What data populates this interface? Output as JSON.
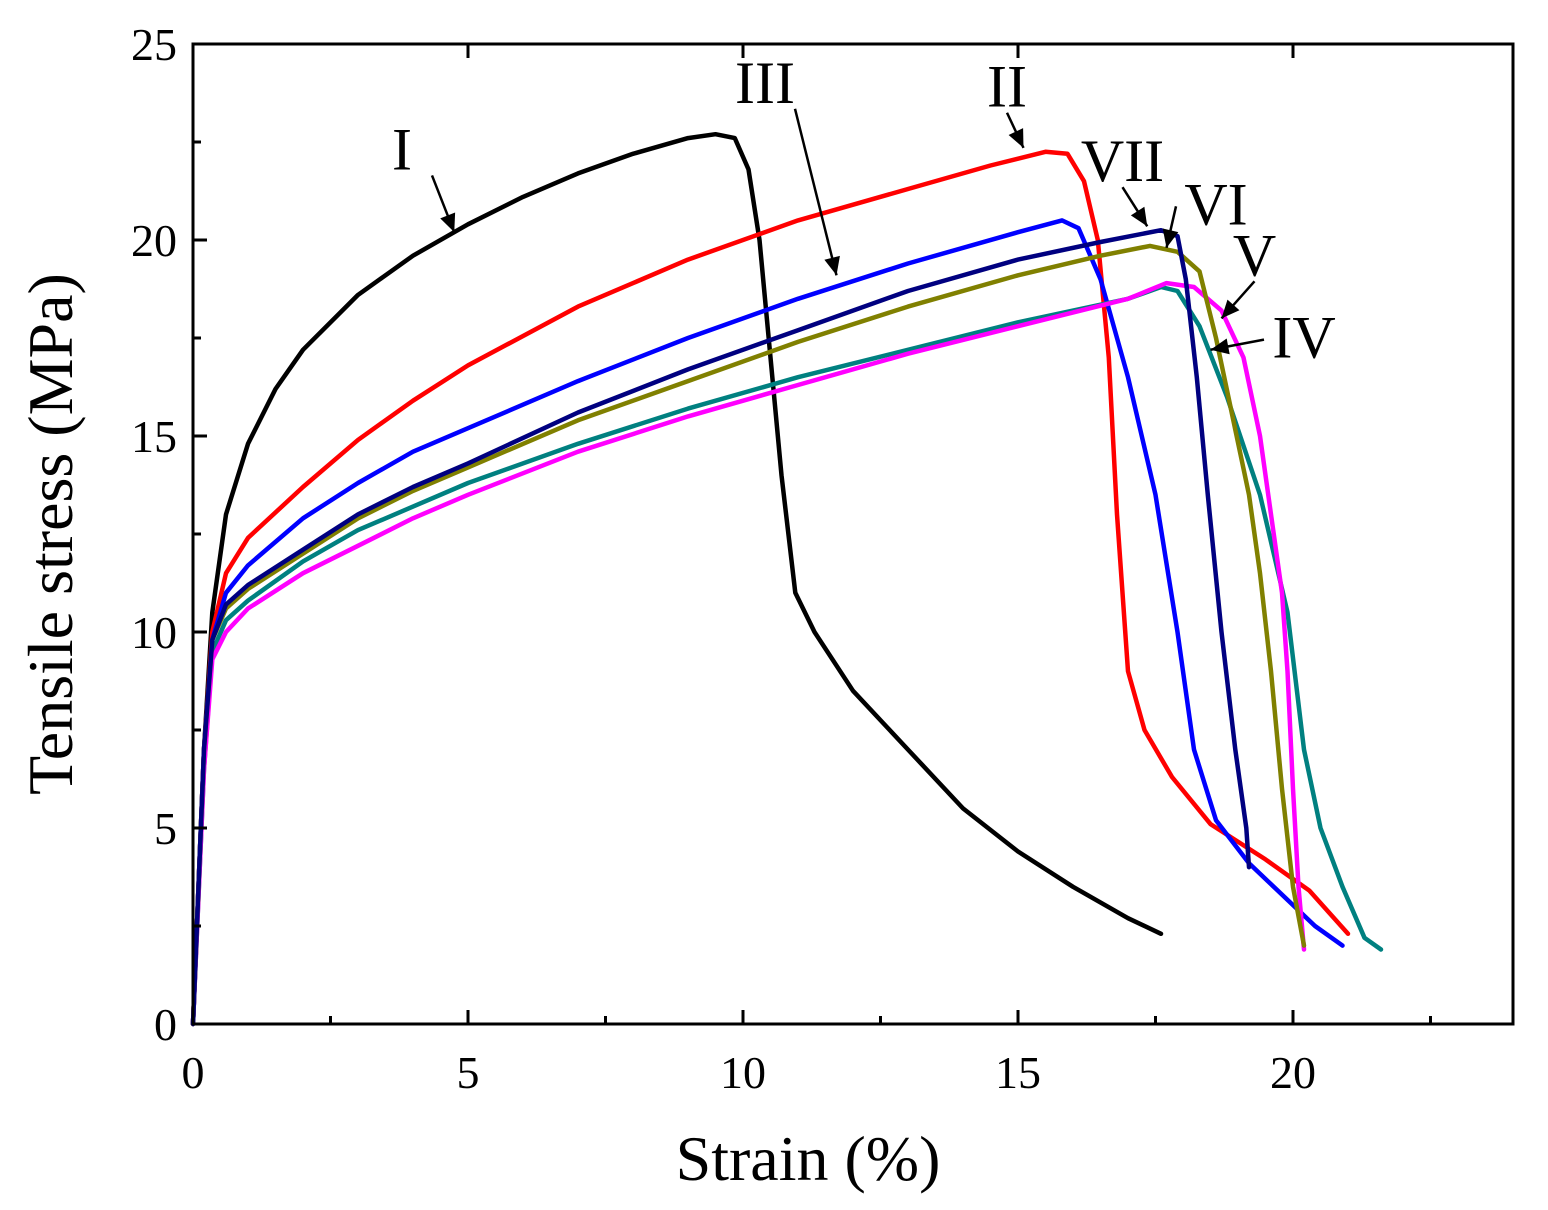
{
  "chart_data": {
    "type": "line",
    "title": "",
    "xlabel": "Strain (%)",
    "ylabel": "Tensile stress (MPa)",
    "xlim": [
      0,
      24
    ],
    "ylim": [
      0,
      25
    ],
    "xticks": [
      0,
      5,
      10,
      15,
      20
    ],
    "yticks": [
      0,
      5,
      10,
      15,
      20,
      25
    ],
    "grid": false,
    "legend": "inline curve labels with arrows",
    "series": [
      {
        "name": "I",
        "color": "#000000",
        "points": [
          [
            0,
            0
          ],
          [
            0.2,
            7.0
          ],
          [
            0.35,
            10.5
          ],
          [
            0.6,
            13.0
          ],
          [
            1.0,
            14.8
          ],
          [
            1.5,
            16.2
          ],
          [
            2.0,
            17.2
          ],
          [
            3.0,
            18.6
          ],
          [
            4.0,
            19.6
          ],
          [
            5.0,
            20.4
          ],
          [
            6.0,
            21.1
          ],
          [
            7.0,
            21.7
          ],
          [
            8.0,
            22.2
          ],
          [
            9.0,
            22.6
          ],
          [
            9.5,
            22.7
          ],
          [
            9.85,
            22.6
          ],
          [
            10.1,
            21.8
          ],
          [
            10.3,
            20.0
          ],
          [
            10.5,
            17.0
          ],
          [
            10.7,
            14.0
          ],
          [
            10.95,
            11.0
          ],
          [
            11.3,
            10.0
          ],
          [
            12.0,
            8.5
          ],
          [
            13.0,
            7.0
          ],
          [
            14.0,
            5.5
          ],
          [
            15.0,
            4.4
          ],
          [
            16.0,
            3.5
          ],
          [
            17.0,
            2.7
          ],
          [
            17.6,
            2.3
          ]
        ],
        "label_text": "I",
        "label_at": [
          3.8,
          21.8
        ],
        "arrow_to": [
          4.75,
          20.2
        ]
      },
      {
        "name": "II",
        "color": "#ff0000",
        "points": [
          [
            0,
            0
          ],
          [
            0.2,
            7.0
          ],
          [
            0.35,
            10.0
          ],
          [
            0.6,
            11.5
          ],
          [
            1.0,
            12.4
          ],
          [
            2.0,
            13.7
          ],
          [
            3.0,
            14.9
          ],
          [
            4.0,
            15.9
          ],
          [
            5.0,
            16.8
          ],
          [
            7.0,
            18.3
          ],
          [
            9.0,
            19.5
          ],
          [
            11.0,
            20.5
          ],
          [
            13.0,
            21.3
          ],
          [
            14.5,
            21.9
          ],
          [
            15.5,
            22.25
          ],
          [
            15.9,
            22.2
          ],
          [
            16.2,
            21.5
          ],
          [
            16.45,
            20.0
          ],
          [
            16.65,
            17.0
          ],
          [
            16.8,
            13.0
          ],
          [
            17.0,
            9.0
          ],
          [
            17.3,
            7.5
          ],
          [
            17.8,
            6.3
          ],
          [
            18.5,
            5.1
          ],
          [
            19.5,
            4.2
          ],
          [
            20.3,
            3.4
          ],
          [
            21.0,
            2.3
          ]
        ],
        "label_text": "II",
        "label_at": [
          14.8,
          23.4
        ],
        "arrow_to": [
          15.1,
          22.35
        ]
      },
      {
        "name": "III",
        "color": "#0000ff",
        "points": [
          [
            0,
            0
          ],
          [
            0.2,
            7.0
          ],
          [
            0.35,
            9.8
          ],
          [
            0.6,
            11.0
          ],
          [
            1.0,
            11.7
          ],
          [
            2.0,
            12.9
          ],
          [
            3.0,
            13.8
          ],
          [
            4.0,
            14.6
          ],
          [
            5.0,
            15.2
          ],
          [
            7.0,
            16.4
          ],
          [
            9.0,
            17.5
          ],
          [
            11.0,
            18.5
          ],
          [
            13.0,
            19.4
          ],
          [
            15.0,
            20.2
          ],
          [
            15.8,
            20.5
          ],
          [
            16.1,
            20.3
          ],
          [
            16.5,
            19.0
          ],
          [
            17.0,
            16.5
          ],
          [
            17.5,
            13.5
          ],
          [
            17.9,
            10.0
          ],
          [
            18.2,
            7.0
          ],
          [
            18.6,
            5.2
          ],
          [
            19.2,
            4.1
          ],
          [
            19.8,
            3.3
          ],
          [
            20.4,
            2.5
          ],
          [
            20.9,
            2.0
          ]
        ],
        "label_text": "III",
        "label_at": [
          10.4,
          23.5
        ],
        "arrow_to": [
          11.7,
          19.1
        ]
      },
      {
        "name": "IV",
        "color": "#008080",
        "points": [
          [
            0,
            0
          ],
          [
            0.2,
            6.5
          ],
          [
            0.35,
            9.5
          ],
          [
            0.6,
            10.3
          ],
          [
            1.0,
            10.8
          ],
          [
            2.0,
            11.8
          ],
          [
            3.0,
            12.6
          ],
          [
            4.0,
            13.2
          ],
          [
            5.0,
            13.8
          ],
          [
            7.0,
            14.8
          ],
          [
            9.0,
            15.7
          ],
          [
            11.0,
            16.5
          ],
          [
            13.0,
            17.2
          ],
          [
            15.0,
            17.9
          ],
          [
            17.0,
            18.5
          ],
          [
            17.6,
            18.8
          ],
          [
            17.9,
            18.7
          ],
          [
            18.3,
            17.8
          ],
          [
            18.8,
            16.0
          ],
          [
            19.4,
            13.5
          ],
          [
            19.9,
            10.5
          ],
          [
            20.2,
            7.0
          ],
          [
            20.5,
            5.0
          ],
          [
            20.9,
            3.5
          ],
          [
            21.3,
            2.2
          ],
          [
            21.6,
            1.9
          ]
        ],
        "label_text": "IV",
        "label_at": [
          20.2,
          17.0
        ],
        "arrow_to": [
          18.5,
          17.2
        ]
      },
      {
        "name": "V",
        "color": "#ff00ff",
        "points": [
          [
            0,
            0
          ],
          [
            0.2,
            6.5
          ],
          [
            0.35,
            9.3
          ],
          [
            0.6,
            10.0
          ],
          [
            1.0,
            10.6
          ],
          [
            2.0,
            11.5
          ],
          [
            3.0,
            12.2
          ],
          [
            4.0,
            12.9
          ],
          [
            5.0,
            13.5
          ],
          [
            7.0,
            14.6
          ],
          [
            9.0,
            15.5
          ],
          [
            11.0,
            16.3
          ],
          [
            13.0,
            17.1
          ],
          [
            15.0,
            17.8
          ],
          [
            17.0,
            18.5
          ],
          [
            17.7,
            18.9
          ],
          [
            18.2,
            18.8
          ],
          [
            18.7,
            18.2
          ],
          [
            19.1,
            17.0
          ],
          [
            19.4,
            15.0
          ],
          [
            19.6,
            13.0
          ],
          [
            19.8,
            11.0
          ],
          [
            19.9,
            9.0
          ],
          [
            20.0,
            6.0
          ],
          [
            20.1,
            3.5
          ],
          [
            20.2,
            1.9
          ]
        ],
        "label_text": "V",
        "label_at": [
          19.3,
          19.1
        ],
        "arrow_to": [
          18.7,
          18.0
        ]
      },
      {
        "name": "VI",
        "color": "#808000",
        "points": [
          [
            0,
            0
          ],
          [
            0.2,
            7.0
          ],
          [
            0.35,
            9.8
          ],
          [
            0.6,
            10.6
          ],
          [
            1.0,
            11.1
          ],
          [
            2.0,
            12.0
          ],
          [
            3.0,
            12.9
          ],
          [
            4.0,
            13.6
          ],
          [
            5.0,
            14.2
          ],
          [
            7.0,
            15.4
          ],
          [
            9.0,
            16.4
          ],
          [
            11.0,
            17.4
          ],
          [
            13.0,
            18.3
          ],
          [
            15.0,
            19.1
          ],
          [
            16.5,
            19.6
          ],
          [
            17.4,
            19.85
          ],
          [
            17.9,
            19.7
          ],
          [
            18.3,
            19.2
          ],
          [
            18.6,
            17.5
          ],
          [
            18.9,
            15.5
          ],
          [
            19.2,
            13.5
          ],
          [
            19.4,
            11.5
          ],
          [
            19.6,
            9.0
          ],
          [
            19.8,
            6.0
          ],
          [
            20.0,
            3.5
          ],
          [
            20.2,
            2.0
          ]
        ],
        "label_text": "VI",
        "label_at": [
          18.6,
          20.4
        ],
        "arrow_to": [
          17.7,
          19.8
        ]
      },
      {
        "name": "VII",
        "color": "#000080",
        "points": [
          [
            0,
            0
          ],
          [
            0.2,
            7.0
          ],
          [
            0.35,
            9.8
          ],
          [
            0.6,
            10.7
          ],
          [
            1.0,
            11.2
          ],
          [
            2.0,
            12.1
          ],
          [
            3.0,
            13.0
          ],
          [
            4.0,
            13.7
          ],
          [
            5.0,
            14.3
          ],
          [
            7.0,
            15.6
          ],
          [
            9.0,
            16.7
          ],
          [
            11.0,
            17.7
          ],
          [
            13.0,
            18.7
          ],
          [
            15.0,
            19.5
          ],
          [
            16.5,
            19.95
          ],
          [
            17.6,
            20.25
          ],
          [
            17.9,
            20.1
          ],
          [
            18.05,
            19.0
          ],
          [
            18.25,
            16.5
          ],
          [
            18.45,
            13.5
          ],
          [
            18.7,
            10.0
          ],
          [
            18.95,
            7.0
          ],
          [
            19.15,
            5.0
          ],
          [
            19.2,
            4.0
          ]
        ],
        "label_text": "VII",
        "label_at": [
          16.9,
          21.5
        ],
        "arrow_to": [
          17.35,
          20.35
        ]
      }
    ]
  }
}
